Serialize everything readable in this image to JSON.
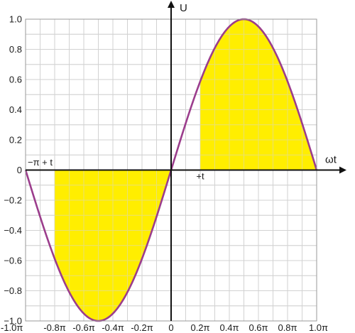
{
  "chart_data": {
    "type": "area",
    "title": "",
    "xlabel": "ωt",
    "ylabel": "U",
    "xlim": [
      -1.0,
      1.0
    ],
    "ylim": [
      -1.0,
      1.0
    ],
    "x_unit": "π",
    "grid": true,
    "x_ticks": [
      -1.0,
      -0.9,
      -0.8,
      -0.7,
      -0.6,
      -0.5,
      -0.4,
      -0.3,
      -0.2,
      -0.1,
      0,
      0.1,
      0.2,
      0.3,
      0.4,
      0.5,
      0.6,
      0.7,
      0.8,
      0.9,
      1.0
    ],
    "x_tick_labels": [
      "-1.0π",
      "-0.8π",
      "-0.6π",
      "-0.4π",
      "-0.2π",
      "0",
      "0.2π",
      "0.4π",
      "0.6π",
      "0.8π",
      "1.0π"
    ],
    "x_tick_label_values": [
      -1.0,
      -0.8,
      -0.6,
      -0.4,
      -0.2,
      0,
      0.2,
      0.4,
      0.6,
      0.8,
      1.0
    ],
    "y_ticks": [
      -1.0,
      -0.9,
      -0.8,
      -0.7,
      -0.6,
      -0.5,
      -0.4,
      -0.3,
      -0.2,
      -0.1,
      0,
      0.1,
      0.2,
      0.3,
      0.4,
      0.5,
      0.6,
      0.7,
      0.8,
      0.9,
      1.0
    ],
    "y_tick_labels": [
      "1.0",
      "0.8",
      "0.6",
      "0.4",
      "0.2",
      "0",
      "−0.2",
      "−0.4",
      "−0.6",
      "−0.8",
      "−1.0"
    ],
    "y_tick_label_values": [
      1.0,
      0.8,
      0.6,
      0.4,
      0.2,
      0,
      -0.2,
      -0.4,
      -0.6,
      -0.8,
      -1.0
    ],
    "series": [
      {
        "function": "sin",
        "x_range": [
          -1.0,
          1.0
        ],
        "color": "#9b3d8c"
      }
    ],
    "shaded_regions": [
      {
        "x_range": [
          -0.8,
          0
        ],
        "fill": "#ffee00"
      },
      {
        "x_range": [
          0.2,
          1.0
        ],
        "fill": "#ffee00"
      }
    ],
    "annotations": [
      {
        "text": "−π + t",
        "x": -0.9,
        "y": 0.03
      },
      {
        "text": "+t",
        "x": 0.2,
        "y": -0.06
      }
    ]
  }
}
